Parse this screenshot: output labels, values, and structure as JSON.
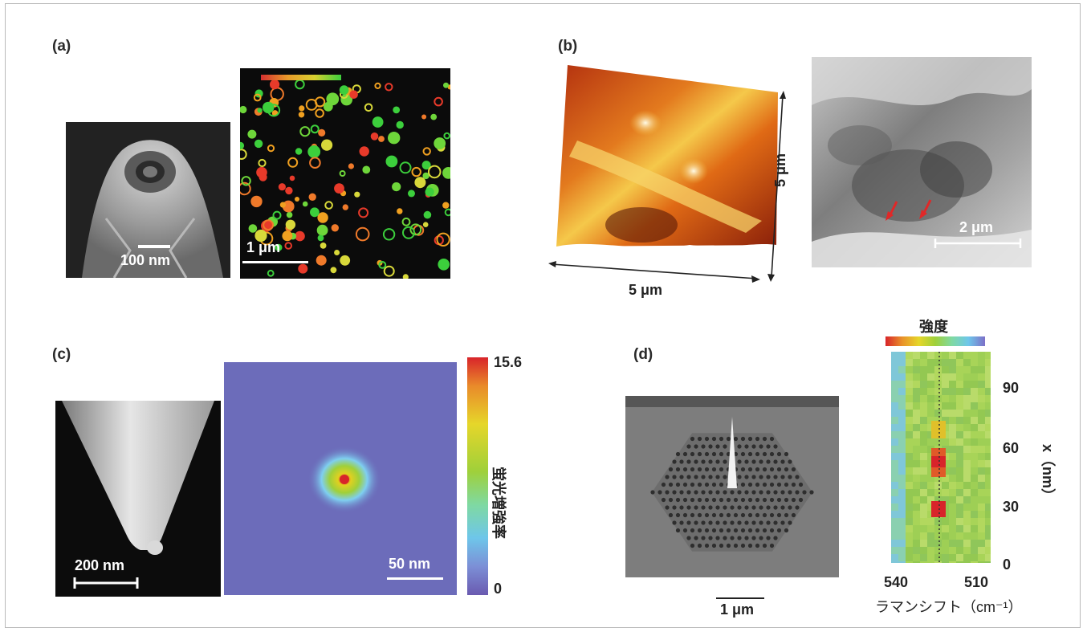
{
  "panels": {
    "a": {
      "label": "(a)",
      "tip_scale": "100 nm",
      "fluor_scale": "1 μm"
    },
    "b": {
      "label": "(b)",
      "afm_x_scale": "5 μm",
      "afm_y_scale": "5 μm",
      "optical_scale": "2 μm"
    },
    "c": {
      "label": "(c)",
      "tip_scale": "200 nm",
      "map_scale": "50 nm",
      "colorbar_max": "15.6",
      "colorbar_min": "0",
      "colorbar_label": "蛍光増強率"
    },
    "d": {
      "label": "(d)",
      "sem_scale": "1 μm",
      "intensity_label": "強度",
      "x_tick_left": "540",
      "x_tick_right": "510",
      "x_axis_label": "ラマンシフト（cm⁻¹）",
      "y_axis_label": "x（nm）",
      "y_ticks": [
        "90",
        "60",
        "30",
        "0"
      ]
    }
  },
  "colors": {
    "frame": "#b9b9b9",
    "sem_gray": "#8a8a8a",
    "afm_orange": "#e07820",
    "map_background": "#6a6ab8",
    "raman_green": "#9ecf55"
  }
}
